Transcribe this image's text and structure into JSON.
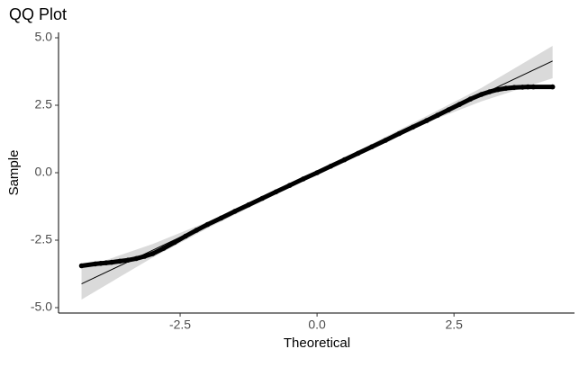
{
  "chart_data": {
    "type": "scatter",
    "title": "QQ Plot",
    "x_label": "Theoretical",
    "y_label": "Sample",
    "x": [
      -4.3,
      -4.05,
      -3.95,
      -3.85,
      -3.75,
      -3.6,
      -3.45,
      -3.3,
      -3.15,
      -3.0,
      -2.8,
      -2.6,
      -2.4,
      -2.2,
      -2.0,
      -1.75,
      -1.5,
      -1.25,
      -1.0,
      -0.75,
      -0.5,
      -0.25,
      0,
      0.25,
      0.5,
      0.75,
      1.0,
      1.25,
      1.5,
      1.75,
      2.0,
      2.2,
      2.4,
      2.6,
      2.8,
      3.0,
      3.15,
      3.3,
      3.45,
      3.6,
      3.75,
      3.85,
      3.95,
      4.3
    ],
    "y": [
      -3.45,
      -3.38,
      -3.36,
      -3.34,
      -3.32,
      -3.28,
      -3.24,
      -3.18,
      -3.1,
      -3.0,
      -2.8,
      -2.58,
      -2.35,
      -2.13,
      -1.92,
      -1.68,
      -1.43,
      -1.19,
      -0.95,
      -0.71,
      -0.47,
      -0.23,
      0,
      0.24,
      0.48,
      0.72,
      0.96,
      1.2,
      1.45,
      1.69,
      1.93,
      2.13,
      2.33,
      2.53,
      2.73,
      2.9,
      3.0,
      3.08,
      3.13,
      3.16,
      3.17,
      3.18,
      3.18,
      3.18
    ],
    "color": "#000000",
    "reference_line": {
      "x": [
        -4.3,
        4.3
      ],
      "y": [
        -4.12,
        4.14
      ],
      "color": "#000000"
    },
    "band": {
      "x": [
        -4.3,
        -3,
        -2,
        0,
        2,
        3,
        4.3
      ],
      "lower": [
        -4.7,
        -3.14,
        -2.06,
        -0.05,
        1.86,
        2.64,
        3.5
      ],
      "upper": [
        -3.55,
        -2.64,
        -1.82,
        0.05,
        2.1,
        3.14,
        4.7
      ],
      "color": "#d3d3d3"
    },
    "xlim": [
      -4.72,
      4.7
    ],
    "ylim": [
      -5.2,
      5.2
    ],
    "xticks": [
      -2.5,
      {
        "value": 0,
        "label": "0.0"
      },
      2.5
    ],
    "yticks": [
      {
        "value": -5,
        "label": "-5.0"
      },
      -2.5,
      {
        "value": 0,
        "label": "0.0"
      },
      2.5,
      {
        "value": 5,
        "label": "5.0"
      }
    ]
  }
}
